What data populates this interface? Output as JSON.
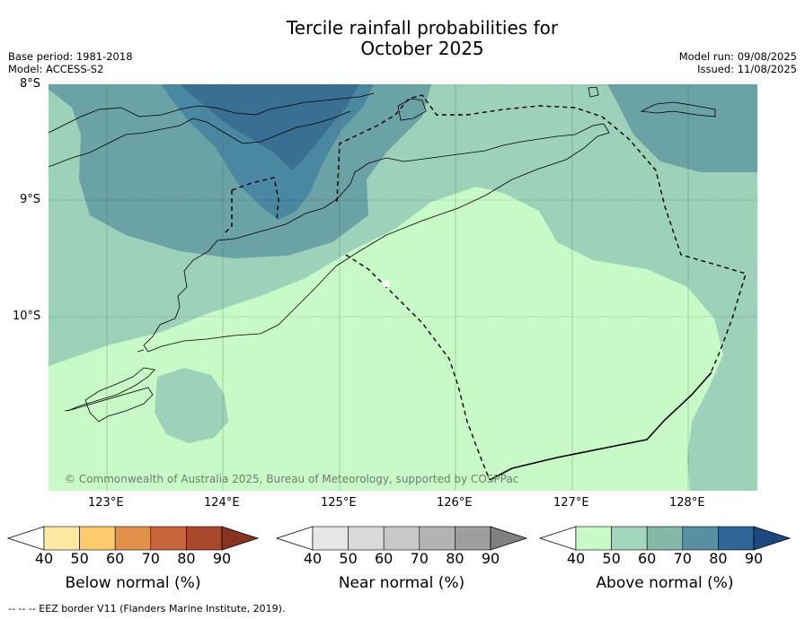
{
  "header": {
    "title_line1": "Tercile rainfall probabilities for",
    "title_line2": "October 2025",
    "base_period": "Base period: 1981-2018",
    "model": "Model: ACCESS-S2",
    "model_run": "Model run: 09/08/2025",
    "issued": "Issued: 11/08/2025"
  },
  "map": {
    "lat_labels": [
      "8°S",
      "9°S",
      "10°S"
    ],
    "lon_labels": [
      "123°E",
      "124°E",
      "125°E",
      "126°E",
      "127°E",
      "128°E"
    ],
    "copyright": "© Commonwealth of Australia 2025, Bureau of Meteorology, supported by COSPPac",
    "colors": {
      "above_40": "#c8fac8",
      "above_50": "#9dd1b9",
      "above_60": "#6aa2a5",
      "above_70": "#4a87a0",
      "above_80": "#3a6f94",
      "border": "#000000"
    }
  },
  "colorbars": {
    "below": {
      "label": "Below normal (%)",
      "ticks": [
        "40",
        "50",
        "60",
        "70",
        "80",
        "90"
      ],
      "colors": [
        "#ffffff",
        "#fde9a2",
        "#fdcb6b",
        "#e1914a",
        "#c9653b",
        "#a9482b",
        "#8a3322"
      ]
    },
    "near": {
      "label": "Near normal (%)",
      "ticks": [
        "40",
        "50",
        "60",
        "70",
        "80",
        "90"
      ],
      "colors": [
        "#ffffff",
        "#e6e6e6",
        "#d9d9d9",
        "#c8c8c8",
        "#b3b3b3",
        "#9e9e9e",
        "#808080"
      ]
    },
    "above": {
      "label": "Above normal (%)",
      "ticks": [
        "40",
        "50",
        "60",
        "70",
        "80",
        "90"
      ],
      "colors": [
        "#ffffff",
        "#c8fac8",
        "#a3d7bb",
        "#84b7a8",
        "#5a8fa2",
        "#2f6699",
        "#1c4a80"
      ]
    }
  },
  "footnote": "--  --  -- EEZ border V11 (Flanders Marine Institute, 2019)."
}
